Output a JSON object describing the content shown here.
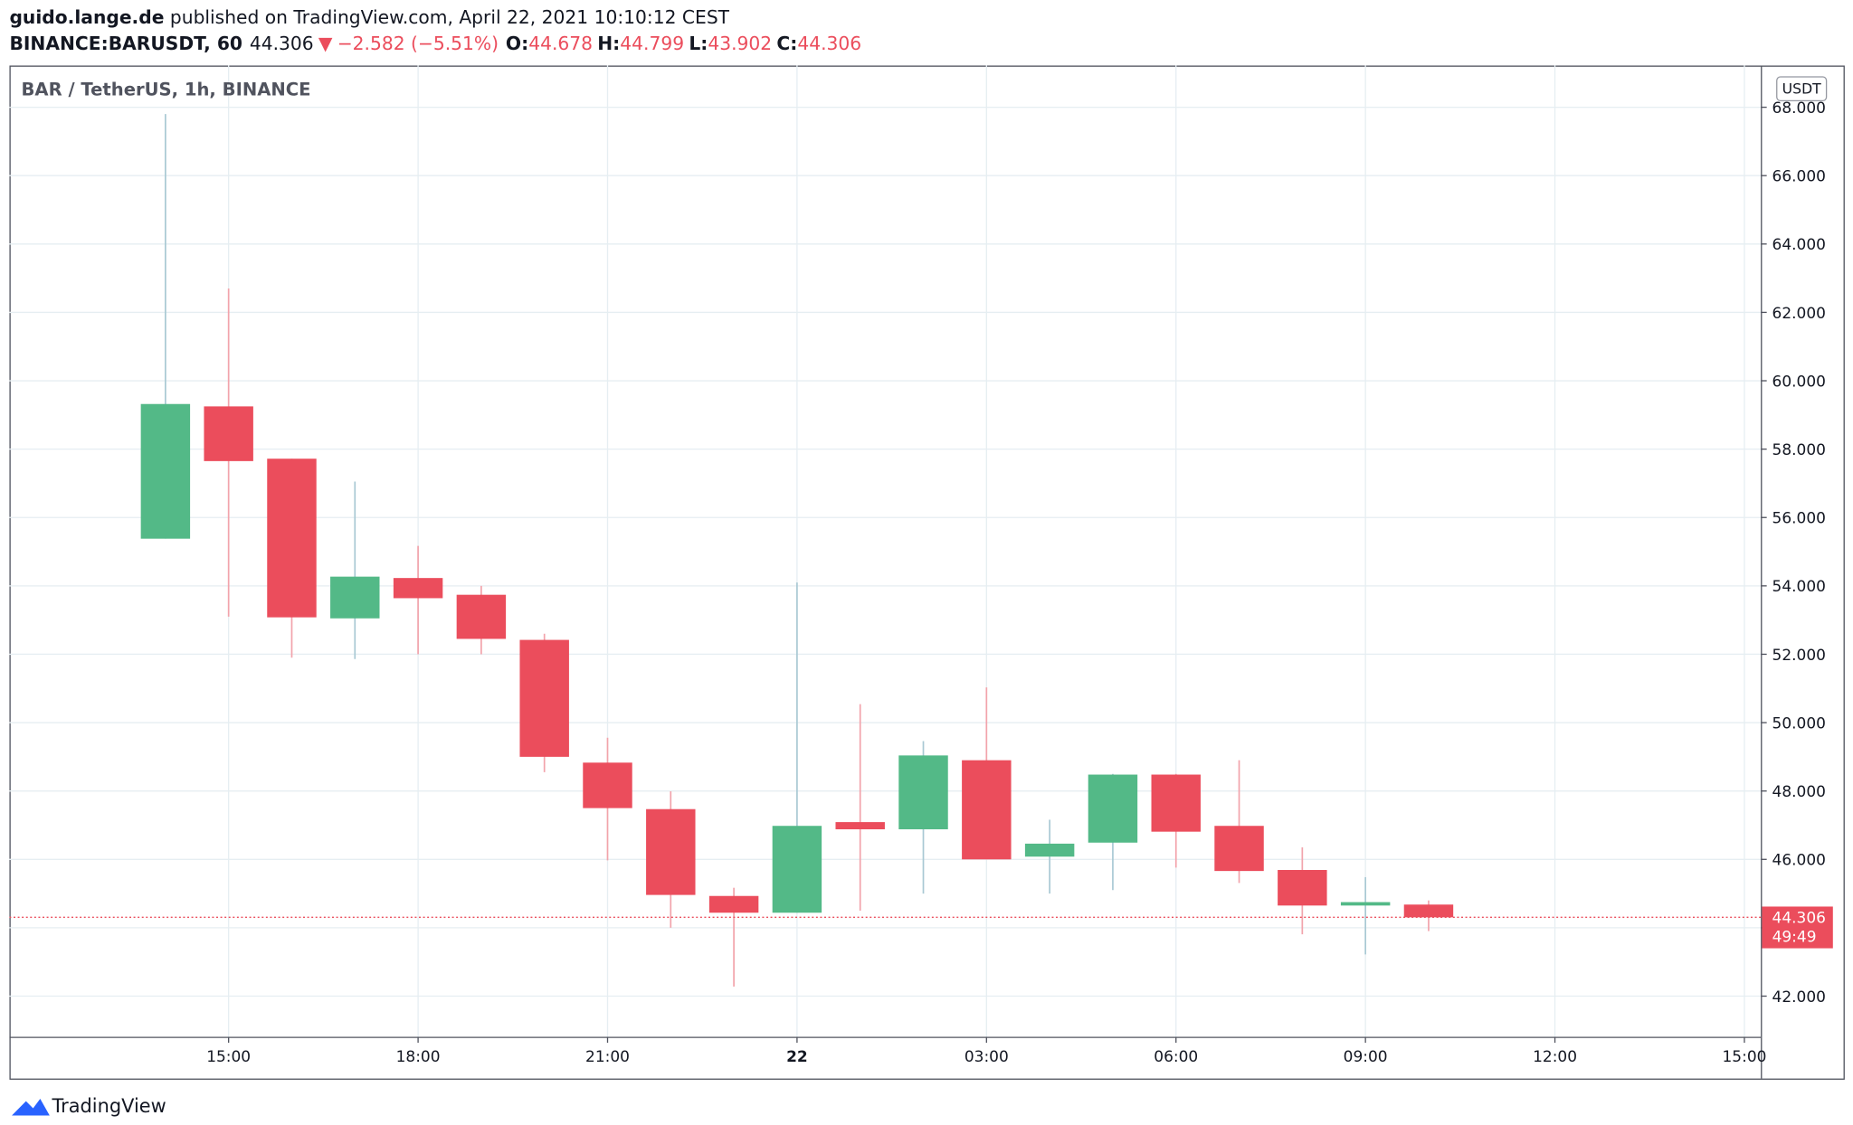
{
  "header": {
    "author": "guido.lange.de",
    "published": " published on TradingView.com, April 22, 2021 10:10:12 CEST",
    "symbol": "BINANCE:BARUSDT, 60",
    "change": "−2.582 (−5.51%)",
    "o_label": "O:",
    "h_label": "H:",
    "l_label": "L:",
    "c_label": "C:"
  },
  "brand": "TradingView",
  "chart_data": {
    "type": "candlestick",
    "title": "BAR / TetherUS, 1h, BINANCE",
    "currency": "USDT",
    "countdown": "49:49",
    "up_color": "#53b987",
    "down_color": "#eb4d5c",
    "open": [
      55.38,
      59.25,
      57.72,
      53.05,
      54.23,
      53.74,
      52.42,
      48.83,
      47.47,
      44.93,
      44.44,
      47.09,
      46.88,
      48.9,
      46.08,
      46.49,
      48.48,
      46.98,
      45.69,
      44.65,
      44.678
    ],
    "high": [
      67.8,
      62.7,
      57.72,
      57.05,
      55.17,
      54.0,
      52.6,
      49.56,
      47.99,
      45.17,
      54.1,
      50.54,
      49.46,
      51.03,
      47.16,
      48.5,
      48.5,
      48.9,
      46.35,
      45.48,
      44.799
    ],
    "low": [
      55.38,
      53.1,
      51.9,
      51.86,
      52.0,
      52.0,
      48.55,
      45.97,
      44.0,
      42.28,
      44.44,
      44.5,
      45.0,
      46.0,
      45.0,
      45.1,
      45.76,
      45.31,
      43.81,
      43.22,
      43.902
    ],
    "close": [
      59.32,
      57.65,
      53.08,
      54.27,
      53.64,
      52.45,
      49.0,
      47.5,
      44.96,
      44.44,
      46.98,
      46.88,
      49.04,
      46.0,
      46.46,
      48.48,
      46.81,
      45.66,
      44.65,
      44.75,
      44.306
    ],
    "xlim": [
      -2.47,
      25.26
    ],
    "xticks": [
      {
        "value": 1,
        "label": "15:00"
      },
      {
        "value": 4,
        "label": "18:00"
      },
      {
        "value": 7,
        "label": "21:00"
      },
      {
        "value": 10,
        "label": "22"
      },
      {
        "value": 13,
        "label": "03:00"
      },
      {
        "value": 16,
        "label": "06:00"
      },
      {
        "value": 19,
        "label": "09:00"
      },
      {
        "value": 22,
        "label": "12:00"
      },
      {
        "value": 25,
        "label": "15:00"
      }
    ],
    "ylim": [
      40.81,
      69.22
    ],
    "yticks": [
      {
        "value": 42,
        "label": "42.000"
      },
      {
        "value": 44,
        "label": "44.000"
      },
      {
        "value": 46,
        "label": "46.000"
      },
      {
        "value": 48,
        "label": "48.000"
      },
      {
        "value": 50,
        "label": "50.000"
      },
      {
        "value": 52,
        "label": "52.000"
      },
      {
        "value": 54,
        "label": "54.000"
      },
      {
        "value": 56,
        "label": "56.000"
      },
      {
        "value": 58,
        "label": "58.000"
      },
      {
        "value": 60,
        "label": "60.000"
      },
      {
        "value": 62,
        "label": "62.000"
      },
      {
        "value": 64,
        "label": "64.000"
      },
      {
        "value": 66,
        "label": "66.000"
      },
      {
        "value": 68,
        "label": "68.000"
      }
    ],
    "grid": true
  }
}
